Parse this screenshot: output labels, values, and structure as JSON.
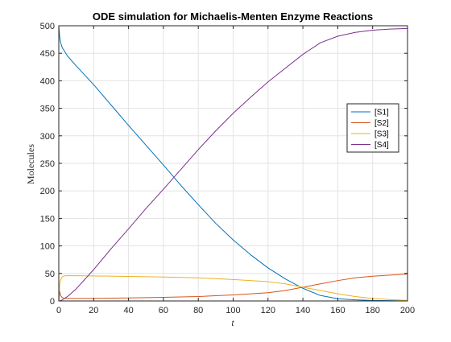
{
  "chart_data": {
    "type": "line",
    "title": "ODE simulation for Michaelis-Menten Enzyme Reactions",
    "xlabel": "t",
    "ylabel": "Molecules",
    "xlim": [
      0,
      200
    ],
    "ylim": [
      0,
      500
    ],
    "x_ticks": [
      0,
      20,
      40,
      60,
      80,
      100,
      120,
      140,
      160,
      180,
      200
    ],
    "y_ticks": [
      0,
      50,
      100,
      150,
      200,
      250,
      300,
      350,
      400,
      450,
      500
    ],
    "grid": true,
    "legend_position": "right",
    "series": [
      {
        "name": "[S1]",
        "color": "#0072BD",
        "x": [
          0,
          0.5,
          1,
          2,
          3,
          5,
          10,
          20,
          30,
          40,
          50,
          60,
          70,
          80,
          90,
          100,
          110,
          120,
          130,
          140,
          150,
          160,
          170,
          180,
          190,
          200
        ],
        "y": [
          500,
          480,
          470,
          460,
          455,
          445,
          427,
          393,
          356,
          319,
          283,
          247,
          210,
          175,
          141,
          111,
          84,
          60,
          40,
          23,
          10,
          4,
          2,
          1,
          0.5,
          0
        ]
      },
      {
        "name": "[S2]",
        "color": "#D95319",
        "x": [
          0,
          0.5,
          1,
          2,
          3,
          5,
          10,
          20,
          40,
          60,
          80,
          100,
          120,
          130,
          140,
          150,
          160,
          170,
          180,
          190,
          200
        ],
        "y": [
          0,
          18,
          10,
          6,
          5,
          4.5,
          4.5,
          4.7,
          5.5,
          6.5,
          8,
          11,
          15,
          19,
          25,
          31,
          37,
          42,
          45,
          47,
          49
        ]
      },
      {
        "name": "[S3]",
        "color": "#EDB120",
        "x": [
          0,
          0.5,
          1,
          2,
          3,
          5,
          10,
          20,
          40,
          60,
          80,
          100,
          120,
          130,
          140,
          150,
          160,
          170,
          180,
          190,
          200
        ],
        "y": [
          0,
          30,
          38,
          44,
          45.5,
          46,
          45.8,
          45.5,
          44.5,
          43.5,
          42,
          39,
          35,
          31,
          25,
          19,
          13,
          8,
          4.5,
          2.5,
          1
        ]
      },
      {
        "name": "[S4]",
        "color": "#7E2F8E",
        "x": [
          0,
          1,
          2,
          5,
          10,
          20,
          30,
          40,
          50,
          60,
          70,
          80,
          90,
          100,
          110,
          120,
          130,
          140,
          150,
          160,
          170,
          180,
          190,
          200
        ],
        "y": [
          0,
          0.5,
          2,
          8,
          22,
          57,
          95,
          131,
          168,
          203,
          239,
          275,
          309,
          341,
          370,
          398,
          423,
          448,
          469,
          481,
          488,
          492,
          494,
          495
        ]
      }
    ]
  }
}
